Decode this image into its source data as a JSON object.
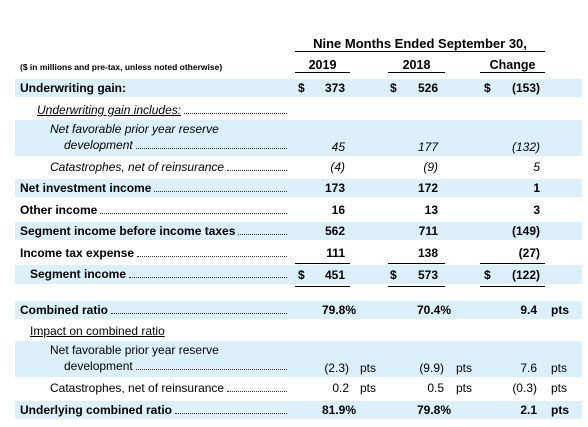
{
  "header": {
    "period": "Nine Months Ended September 30,",
    "note": "($ in millions and pre-tax, unless noted otherwise)",
    "columns": [
      "2019",
      "2018",
      "Change"
    ]
  },
  "rows": [
    {
      "label": [
        "Underwriting gain:"
      ],
      "cells": [
        "$",
        "373",
        "$",
        "526",
        "$",
        "(153)"
      ]
    },
    {
      "label": [
        "Underwriting gain includes:"
      ],
      "cells": []
    },
    {
      "label": [
        "Net favorable prior year reserve",
        "development"
      ],
      "cells": [
        "45",
        "177",
        "(132)"
      ]
    },
    {
      "label": [
        "Catastrophes, net of reinsurance"
      ],
      "cells": [
        "(4)",
        "(9)",
        "5"
      ]
    },
    {
      "label": [
        "Net investment income"
      ],
      "cells": [
        "173",
        "172",
        "1"
      ]
    },
    {
      "label": [
        "Other income"
      ],
      "cells": [
        "16",
        "13",
        "3"
      ]
    },
    {
      "label": [
        "Segment income before income taxes"
      ],
      "cells": [
        "562",
        "711",
        "(149)"
      ]
    },
    {
      "label": [
        "Income tax expense"
      ],
      "cells": [
        "111",
        "138",
        "(27)"
      ]
    },
    {
      "label": [
        "Segment income"
      ],
      "cells": [
        "$",
        "451",
        "$",
        "573",
        "$",
        "(122)"
      ]
    },
    {
      "label": [
        "Combined ratio"
      ],
      "cells": [
        "79.8%",
        "70.4%",
        "9.4",
        "pts"
      ]
    },
    {
      "label": [
        "Impact on combined ratio"
      ],
      "cells": []
    },
    {
      "label": [
        "Net favorable prior year reserve",
        "development"
      ],
      "cells": [
        "(2.3)",
        "pts",
        "(9.9)",
        "pts",
        "7.6",
        "pts"
      ]
    },
    {
      "label": [
        "Catastrophes, net of reinsurance"
      ],
      "cells": [
        "0.2",
        "pts",
        "0.5",
        "pts",
        "(0.3)",
        "pts"
      ]
    },
    {
      "label": [
        "Underlying combined ratio"
      ],
      "cells": [
        "81.9%",
        "79.8%",
        "2.1",
        "pts"
      ]
    }
  ]
}
